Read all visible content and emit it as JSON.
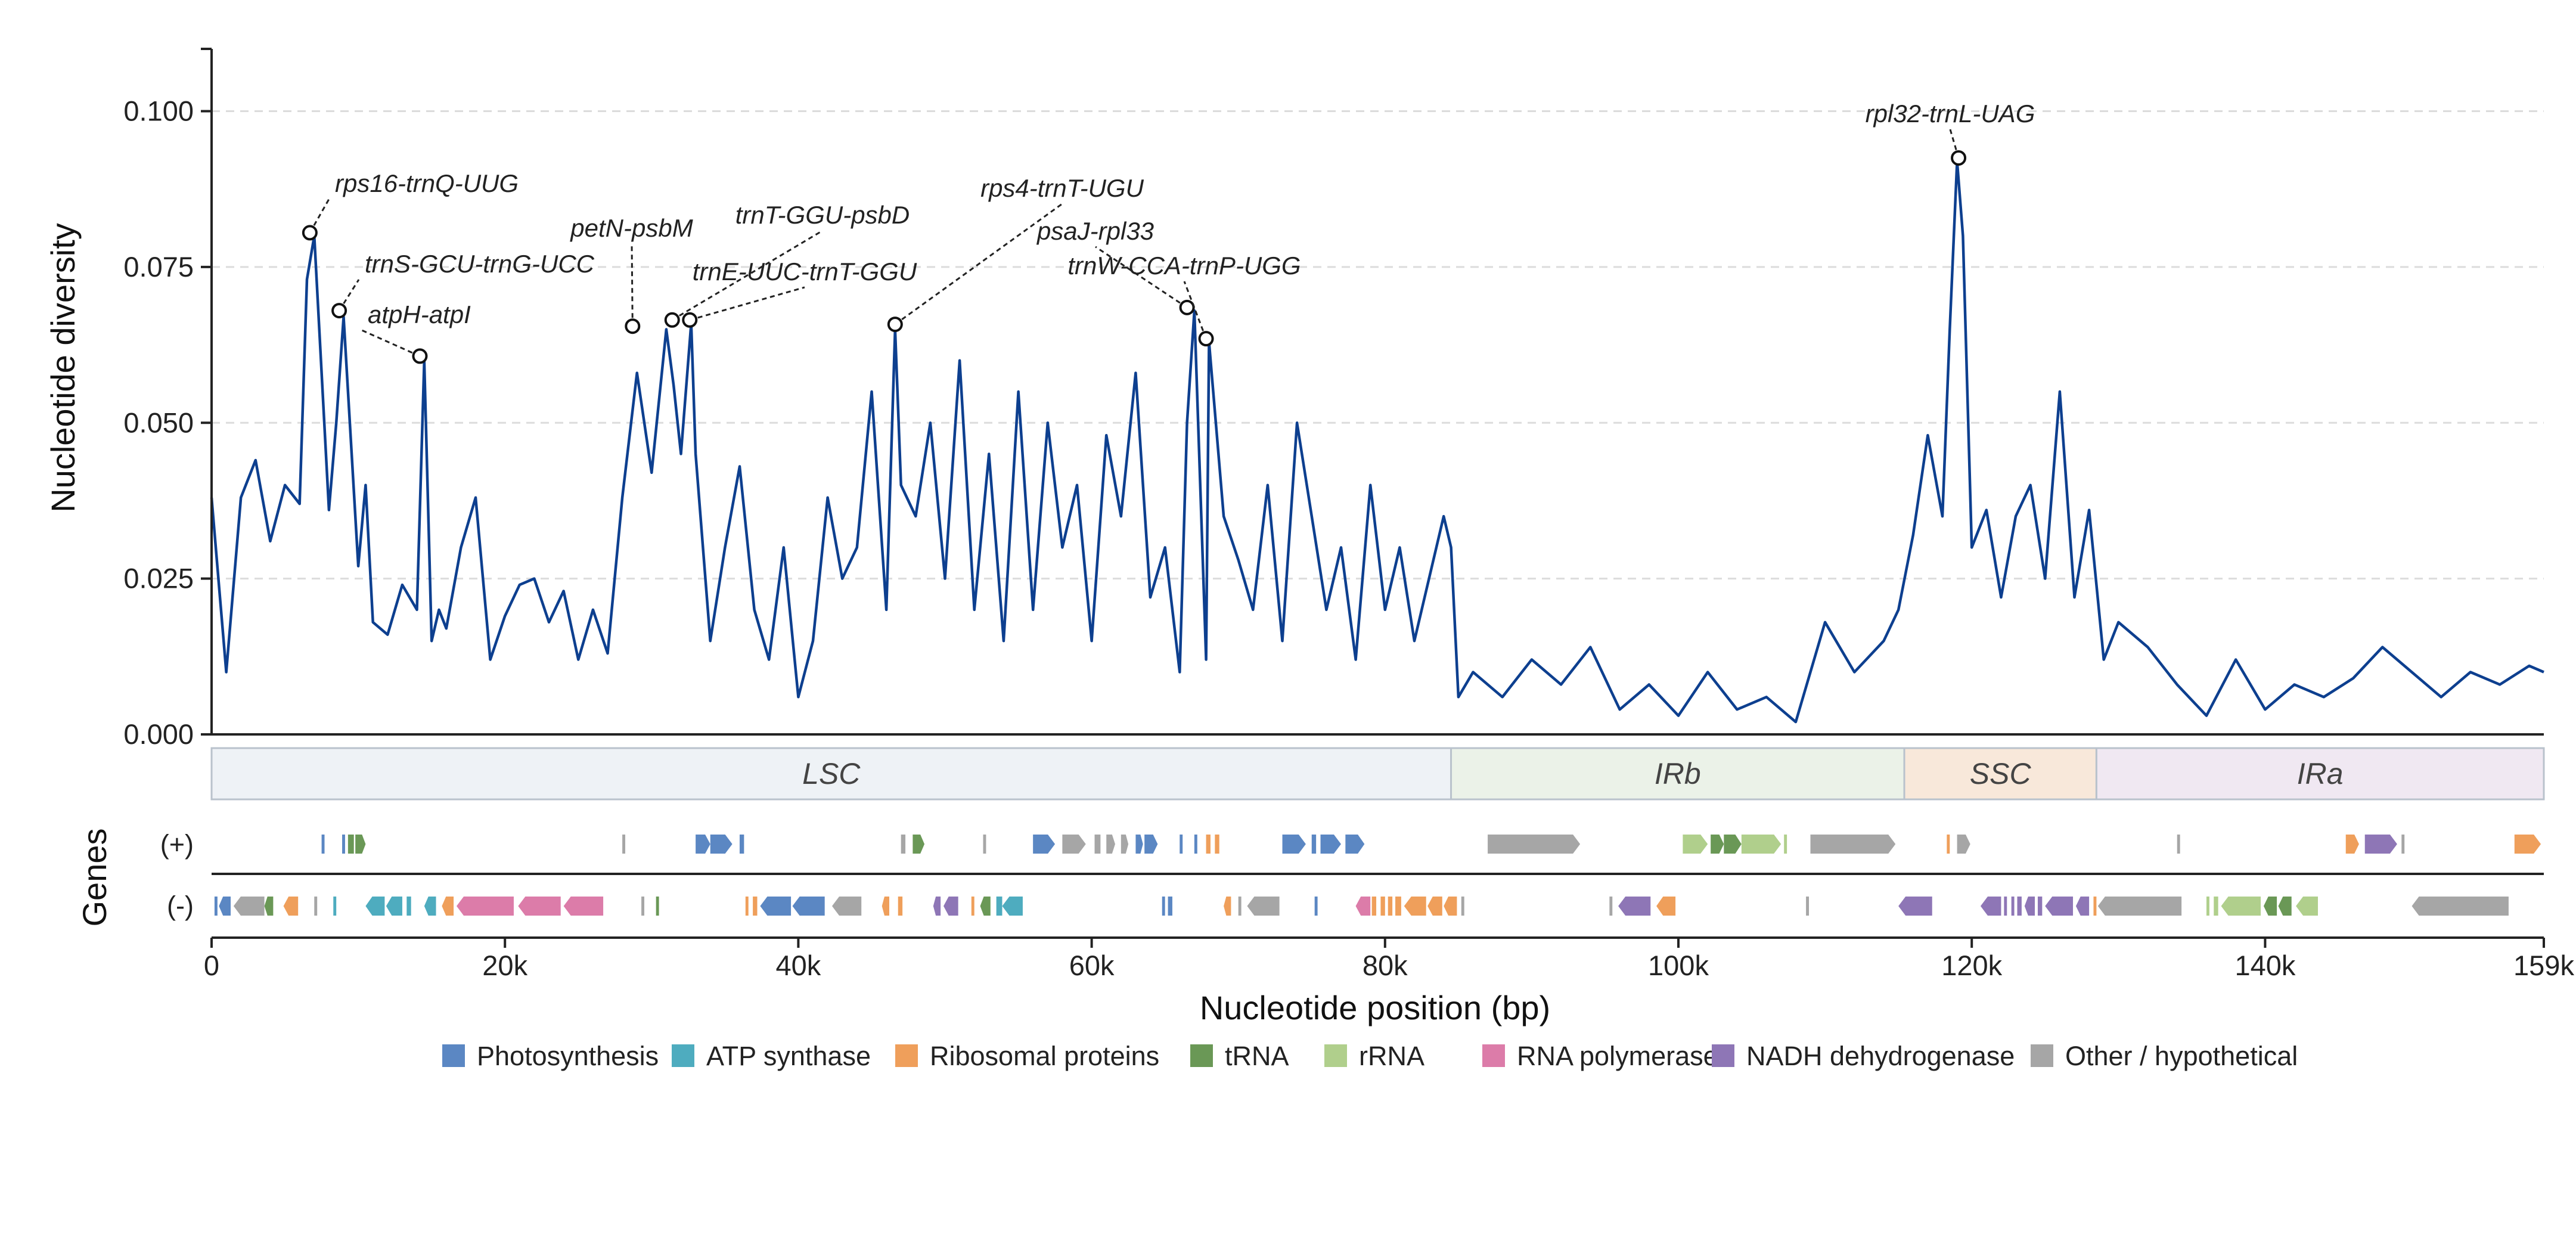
{
  "chart_data": {
    "type": "line",
    "xlabel": "Nucleotide position (bp)",
    "ylabel": "Nucleotide diversity",
    "xlim": [
      0,
      159000
    ],
    "ylim": [
      0,
      0.11
    ],
    "x_ticks": [
      0,
      20000,
      40000,
      60000,
      80000,
      100000,
      120000,
      140000,
      159000
    ],
    "x_tick_labels": [
      "0",
      "20k",
      "40k",
      "60k",
      "80k",
      "100k",
      "120k",
      "140k",
      "159k"
    ],
    "y_ticks": [
      0,
      0.025,
      0.05,
      0.075,
      0.1
    ],
    "y_tick_labels": [
      "0.000",
      "0.025",
      "0.050",
      "0.075",
      "0.100"
    ],
    "grid": "horizontal dashed",
    "line_color": "#0d3f8f",
    "series": [
      {
        "x": [
          0,
          1000,
          2000,
          3000,
          4000,
          5000,
          6000,
          6500,
          7000,
          8000,
          8500,
          9000,
          10000,
          10500,
          11000,
          12000,
          13000,
          14000,
          14500,
          15000,
          15500,
          16000,
          17000,
          18000,
          19000,
          20000,
          21000,
          22000,
          23000,
          24000,
          25000,
          26000,
          27000,
          28000,
          29000,
          30000,
          31000,
          31500,
          32000,
          32700,
          33000,
          34000,
          35000,
          36000,
          37000,
          38000,
          39000,
          40000,
          41000,
          42000,
          43000,
          44000,
          45000,
          46000,
          46600,
          47000,
          48000,
          49000,
          50000,
          51000,
          52000,
          53000,
          54000,
          55000,
          56000,
          57000,
          58000,
          59000,
          60000,
          61000,
          62000,
          63000,
          64000,
          65000,
          66000,
          66500,
          67000,
          67800,
          68000,
          69000,
          70000,
          71000,
          72000,
          73000,
          74000,
          75000,
          76000,
          77000,
          78000,
          79000,
          80000,
          81000,
          82000,
          83000,
          84000,
          84500,
          85000,
          86000,
          88000,
          90000,
          92000,
          94000,
          96000,
          98000,
          100000,
          102000,
          104000,
          106000,
          108000,
          110000,
          112000,
          114000,
          115000,
          116000,
          117000,
          118000,
          118500,
          119000,
          119400,
          120000,
          121000,
          122000,
          123000,
          124000,
          125000,
          126000,
          127000,
          128000,
          129000,
          130000,
          132000,
          134000,
          136000,
          138000,
          140000,
          142000,
          144000,
          146000,
          148000,
          150000,
          152000,
          154000,
          156000,
          158000,
          159000
        ],
        "y": [
          0.038,
          0.01,
          0.038,
          0.044,
          0.031,
          0.04,
          0.037,
          0.073,
          0.08,
          0.036,
          0.05,
          0.067,
          0.027,
          0.04,
          0.018,
          0.016,
          0.024,
          0.02,
          0.06,
          0.015,
          0.02,
          0.017,
          0.03,
          0.038,
          0.012,
          0.019,
          0.024,
          0.025,
          0.018,
          0.023,
          0.012,
          0.02,
          0.013,
          0.038,
          0.058,
          0.042,
          0.065,
          0.056,
          0.045,
          0.066,
          0.045,
          0.015,
          0.03,
          0.043,
          0.02,
          0.012,
          0.03,
          0.006,
          0.015,
          0.038,
          0.025,
          0.03,
          0.055,
          0.02,
          0.065,
          0.04,
          0.035,
          0.05,
          0.025,
          0.06,
          0.02,
          0.045,
          0.015,
          0.055,
          0.02,
          0.05,
          0.03,
          0.04,
          0.015,
          0.048,
          0.035,
          0.058,
          0.022,
          0.03,
          0.01,
          0.05,
          0.068,
          0.012,
          0.063,
          0.035,
          0.028,
          0.02,
          0.04,
          0.015,
          0.05,
          0.035,
          0.02,
          0.03,
          0.012,
          0.04,
          0.02,
          0.03,
          0.015,
          0.025,
          0.035,
          0.03,
          0.006,
          0.01,
          0.006,
          0.012,
          0.008,
          0.014,
          0.004,
          0.008,
          0.003,
          0.01,
          0.004,
          0.006,
          0.002,
          0.018,
          0.01,
          0.015,
          0.02,
          0.032,
          0.048,
          0.035,
          0.065,
          0.092,
          0.08,
          0.03,
          0.036,
          0.022,
          0.035,
          0.04,
          0.025,
          0.055,
          0.022,
          0.036,
          0.012,
          0.018,
          0.014,
          0.008,
          0.003,
          0.012,
          0.004,
          0.008,
          0.006,
          0.009,
          0.014,
          0.01,
          0.006,
          0.01,
          0.008,
          0.011,
          0.01
        ]
      }
    ],
    "peaks": [
      {
        "label": "rps16-trnQ-UUG",
        "x": 6700,
        "y": 0.0805
      },
      {
        "label": "trnS-GCU-trnG-UCC",
        "x": 8700,
        "y": 0.068
      },
      {
        "label": "atpH-atpI",
        "x": 14200,
        "y": 0.0607
      },
      {
        "label": "petN-psbM",
        "x": 28700,
        "y": 0.0655
      },
      {
        "label": "trnT-GGU-psbD",
        "x": 31400,
        "y": 0.0665
      },
      {
        "label": "trnE-UUC-trnT-GGU",
        "x": 32600,
        "y": 0.0665
      },
      {
        "label": "rps4-trnT-UGU",
        "x": 46600,
        "y": 0.0658
      },
      {
        "label": "psaJ-rpl33",
        "x": 66500,
        "y": 0.0685
      },
      {
        "label": "trnW-CCA-trnP-UGG",
        "x": 67800,
        "y": 0.0635
      },
      {
        "label": "rpl32-trnL-UAG",
        "x": 119100,
        "y": 0.0925
      }
    ],
    "regions": [
      {
        "label": "LSC",
        "start": 0,
        "end": 84500,
        "color": "#eef2f6"
      },
      {
        "label": "IRb",
        "start": 84500,
        "end": 115400,
        "color": "#ebf2e8"
      },
      {
        "label": "SSC",
        "start": 115400,
        "end": 128500,
        "color": "#f8e8da"
      },
      {
        "label": "IRa",
        "start": 128500,
        "end": 159000,
        "color": "#f0e8f2"
      }
    ],
    "genes_label": "Genes",
    "strand_labels": [
      "(+)",
      "(-)"
    ],
    "legend": [
      {
        "key": "photo",
        "label": "Photosynthesis",
        "color": "#5b87c3"
      },
      {
        "key": "atp",
        "label": "ATP synthase",
        "color": "#4eacbf"
      },
      {
        "key": "ribo",
        "label": "Ribosomal proteins",
        "color": "#ef9f5b"
      },
      {
        "key": "trna",
        "label": "tRNA",
        "color": "#6a9856"
      },
      {
        "key": "rrna",
        "label": "rRNA",
        "color": "#b0cf8c"
      },
      {
        "key": "rnapol",
        "label": "RNA polymerase",
        "color": "#dc7ca9"
      },
      {
        "key": "ndh",
        "label": "NADH dehydrogenase",
        "color": "#8e76b6"
      },
      {
        "key": "other",
        "label": "Other / hypothetical",
        "color": "#a6a6a6"
      }
    ],
    "genes_plus": [
      {
        "start": 7500,
        "end": 7700,
        "cat": "photo"
      },
      {
        "start": 8900,
        "end": 9100,
        "cat": "photo"
      },
      {
        "start": 9300,
        "end": 9700,
        "cat": "trna"
      },
      {
        "start": 9800,
        "end": 10500,
        "cat": "trna"
      },
      {
        "start": 28000,
        "end": 28200,
        "cat": "other"
      },
      {
        "start": 33000,
        "end": 34000,
        "cat": "photo"
      },
      {
        "start": 34000,
        "end": 35500,
        "cat": "photo"
      },
      {
        "start": 36000,
        "end": 36300,
        "cat": "photo"
      },
      {
        "start": 47000,
        "end": 47300,
        "cat": "other"
      },
      {
        "start": 47800,
        "end": 48600,
        "cat": "trna"
      },
      {
        "start": 52600,
        "end": 52800,
        "cat": "other"
      },
      {
        "start": 56000,
        "end": 57500,
        "cat": "photo"
      },
      {
        "start": 58000,
        "end": 59600,
        "cat": "other"
      },
      {
        "start": 60200,
        "end": 60600,
        "cat": "other"
      },
      {
        "start": 61000,
        "end": 61600,
        "cat": "other"
      },
      {
        "start": 62000,
        "end": 62500,
        "cat": "other"
      },
      {
        "start": 63000,
        "end": 63500,
        "cat": "photo"
      },
      {
        "start": 63600,
        "end": 64500,
        "cat": "photo"
      },
      {
        "start": 66000,
        "end": 66200,
        "cat": "photo"
      },
      {
        "start": 67000,
        "end": 67200,
        "cat": "photo"
      },
      {
        "start": 67800,
        "end": 68100,
        "cat": "ribo"
      },
      {
        "start": 68400,
        "end": 68700,
        "cat": "ribo"
      },
      {
        "start": 73000,
        "end": 74600,
        "cat": "photo"
      },
      {
        "start": 75000,
        "end": 75300,
        "cat": "photo"
      },
      {
        "start": 75600,
        "end": 77000,
        "cat": "photo"
      },
      {
        "start": 77300,
        "end": 78600,
        "cat": "photo"
      },
      {
        "start": 87000,
        "end": 93300,
        "cat": "other"
      },
      {
        "start": 100300,
        "end": 102000,
        "cat": "rrna"
      },
      {
        "start": 102200,
        "end": 103100,
        "cat": "trna"
      },
      {
        "start": 103100,
        "end": 104300,
        "cat": "trna"
      },
      {
        "start": 104300,
        "end": 107000,
        "cat": "rrna"
      },
      {
        "start": 107200,
        "end": 107400,
        "cat": "rrna"
      },
      {
        "start": 109000,
        "end": 114800,
        "cat": "other"
      },
      {
        "start": 118300,
        "end": 118500,
        "cat": "ribo"
      },
      {
        "start": 119000,
        "end": 119900,
        "cat": "other"
      },
      {
        "start": 134000,
        "end": 134200,
        "cat": "other"
      },
      {
        "start": 145500,
        "end": 146400,
        "cat": "ribo"
      },
      {
        "start": 146800,
        "end": 149000,
        "cat": "ndh"
      },
      {
        "start": 149300,
        "end": 149500,
        "cat": "other"
      },
      {
        "start": 157000,
        "end": 158800,
        "cat": "ribo"
      }
    ],
    "genes_minus": [
      {
        "start": 200,
        "end": 400,
        "cat": "photo"
      },
      {
        "start": 500,
        "end": 1300,
        "cat": "photo"
      },
      {
        "start": 1500,
        "end": 3600,
        "cat": "other"
      },
      {
        "start": 3600,
        "end": 4200,
        "cat": "trna"
      },
      {
        "start": 4900,
        "end": 5900,
        "cat": "ribo"
      },
      {
        "start": 7000,
        "end": 7200,
        "cat": "other"
      },
      {
        "start": 8300,
        "end": 8500,
        "cat": "atp"
      },
      {
        "start": 10500,
        "end": 11800,
        "cat": "atp"
      },
      {
        "start": 11900,
        "end": 13000,
        "cat": "atp"
      },
      {
        "start": 13300,
        "end": 13600,
        "cat": "atp"
      },
      {
        "start": 14500,
        "end": 15300,
        "cat": "atp"
      },
      {
        "start": 15700,
        "end": 16500,
        "cat": "ribo"
      },
      {
        "start": 16700,
        "end": 20600,
        "cat": "rnapol"
      },
      {
        "start": 20900,
        "end": 23800,
        "cat": "rnapol"
      },
      {
        "start": 24000,
        "end": 26700,
        "cat": "rnapol"
      },
      {
        "start": 29300,
        "end": 29500,
        "cat": "other"
      },
      {
        "start": 30300,
        "end": 30500,
        "cat": "trna"
      },
      {
        "start": 36400,
        "end": 36600,
        "cat": "ribo"
      },
      {
        "start": 36900,
        "end": 37200,
        "cat": "ribo"
      },
      {
        "start": 37400,
        "end": 39500,
        "cat": "photo"
      },
      {
        "start": 39600,
        "end": 41800,
        "cat": "photo"
      },
      {
        "start": 42300,
        "end": 44300,
        "cat": "other"
      },
      {
        "start": 45700,
        "end": 46200,
        "cat": "ribo"
      },
      {
        "start": 46800,
        "end": 47100,
        "cat": "ribo"
      },
      {
        "start": 49200,
        "end": 49700,
        "cat": "ndh"
      },
      {
        "start": 49900,
        "end": 50900,
        "cat": "ndh"
      },
      {
        "start": 51800,
        "end": 52000,
        "cat": "ribo"
      },
      {
        "start": 52400,
        "end": 53100,
        "cat": "trna"
      },
      {
        "start": 53500,
        "end": 53900,
        "cat": "atp"
      },
      {
        "start": 53900,
        "end": 55300,
        "cat": "atp"
      },
      {
        "start": 64800,
        "end": 65000,
        "cat": "photo"
      },
      {
        "start": 65200,
        "end": 65500,
        "cat": "photo"
      },
      {
        "start": 69000,
        "end": 69500,
        "cat": "ribo"
      },
      {
        "start": 70000,
        "end": 70200,
        "cat": "other"
      },
      {
        "start": 70600,
        "end": 72800,
        "cat": "other"
      },
      {
        "start": 75200,
        "end": 75400,
        "cat": "photo"
      },
      {
        "start": 78000,
        "end": 79000,
        "cat": "rnapol"
      },
      {
        "start": 79100,
        "end": 79400,
        "cat": "ribo"
      },
      {
        "start": 79700,
        "end": 80000,
        "cat": "ribo"
      },
      {
        "start": 80200,
        "end": 80500,
        "cat": "ribo"
      },
      {
        "start": 80700,
        "end": 81100,
        "cat": "ribo"
      },
      {
        "start": 81300,
        "end": 82800,
        "cat": "ribo"
      },
      {
        "start": 82900,
        "end": 83900,
        "cat": "ribo"
      },
      {
        "start": 84000,
        "end": 84900,
        "cat": "ribo"
      },
      {
        "start": 85200,
        "end": 85400,
        "cat": "other"
      },
      {
        "start": 95300,
        "end": 95500,
        "cat": "other"
      },
      {
        "start": 95900,
        "end": 98100,
        "cat": "ndh"
      },
      {
        "start": 98500,
        "end": 99800,
        "cat": "ribo"
      },
      {
        "start": 108700,
        "end": 108900,
        "cat": "other"
      },
      {
        "start": 115000,
        "end": 117300,
        "cat": "ndh"
      },
      {
        "start": 120600,
        "end": 122000,
        "cat": "ndh"
      },
      {
        "start": 122200,
        "end": 122400,
        "cat": "ndh"
      },
      {
        "start": 122700,
        "end": 122900,
        "cat": "ndh"
      },
      {
        "start": 123100,
        "end": 123400,
        "cat": "ndh"
      },
      {
        "start": 123600,
        "end": 124300,
        "cat": "ndh"
      },
      {
        "start": 124500,
        "end": 124800,
        "cat": "ndh"
      },
      {
        "start": 125000,
        "end": 126900,
        "cat": "ndh"
      },
      {
        "start": 127100,
        "end": 128000,
        "cat": "ndh"
      },
      {
        "start": 128300,
        "end": 128500,
        "cat": "ribo"
      },
      {
        "start": 128600,
        "end": 134300,
        "cat": "other"
      },
      {
        "start": 136000,
        "end": 136200,
        "cat": "rrna"
      },
      {
        "start": 136500,
        "end": 136800,
        "cat": "rrna"
      },
      {
        "start": 137000,
        "end": 139700,
        "cat": "rrna"
      },
      {
        "start": 139900,
        "end": 140800,
        "cat": "trna"
      },
      {
        "start": 140900,
        "end": 141800,
        "cat": "trna"
      },
      {
        "start": 142100,
        "end": 143600,
        "cat": "rrna"
      },
      {
        "start": 150000,
        "end": 156600,
        "cat": "other"
      }
    ]
  }
}
